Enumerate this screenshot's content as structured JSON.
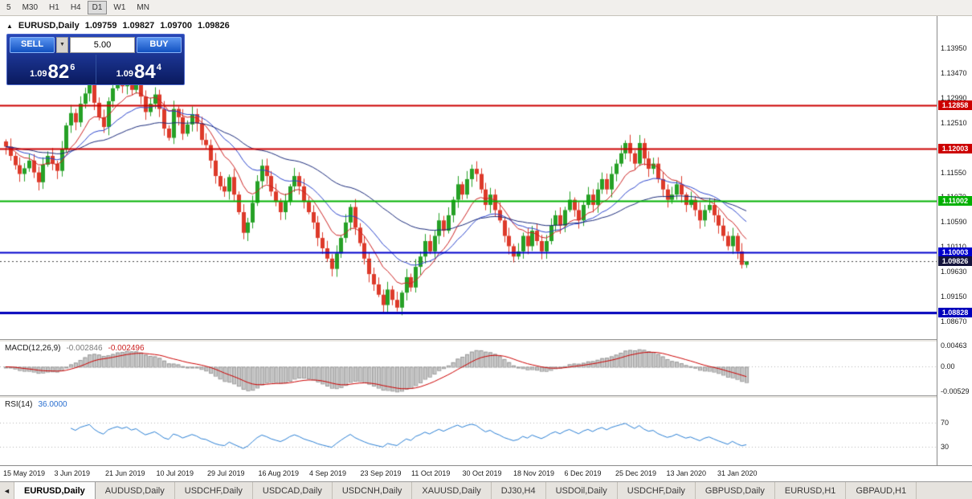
{
  "timeframe_toolbar": {
    "items": [
      "5",
      "M30",
      "H1",
      "H4",
      "D1",
      "W1",
      "MN"
    ],
    "active": "D1"
  },
  "chart_header": {
    "marker": "▲",
    "symbol": "EURUSD,Daily",
    "open": "1.09759",
    "high": "1.09827",
    "low": "1.09700",
    "close": "1.09826"
  },
  "trade_panel": {
    "sell_label": "SELL",
    "buy_label": "BUY",
    "volume": "5.00",
    "spinner_icon": "▼",
    "sell_price": {
      "prefix": "1.09",
      "big": "82",
      "sup": "6"
    },
    "buy_price": {
      "prefix": "1.09",
      "big": "84",
      "sup": "4"
    }
  },
  "price_axis": {
    "ticks": [
      "1.13950",
      "1.13470",
      "1.12990",
      "1.12510",
      "1.12030",
      "1.11550",
      "1.11070",
      "1.10590",
      "1.10110",
      "1.09630",
      "1.09150",
      "1.08670"
    ]
  },
  "levels": [
    {
      "label": "1.12858",
      "value": 1.12858,
      "color": "#cc0000",
      "width": 2
    },
    {
      "label": "1.12003",
      "value": 1.12003,
      "color": "#cc0000",
      "width": 2
    },
    {
      "label": "1.11002",
      "value": 1.11002,
      "color": "#00b000",
      "width": 2
    },
    {
      "label": "1.10003",
      "value": 1.10003,
      "color": "#0000cc",
      "width": 2
    },
    {
      "label": "1.08828",
      "value": 1.08828,
      "color": "#0000bb",
      "width": 3
    }
  ],
  "current_price": {
    "label": "1.09826",
    "value": 1.09826,
    "color": "#14143c"
  },
  "indicators": {
    "macd": {
      "label": "MACD(12,26,9)",
      "value_main": "-0.002846",
      "value_signal": "-0.002496",
      "axis_ticks": [
        "0.00463",
        "0.00",
        "-0.00529"
      ],
      "scale_max": 0.0055,
      "scale_min": -0.0062,
      "histogram_color": "#c6c6c6",
      "histogram_border": "#9a9a9a",
      "signal_color": "#cc0000"
    },
    "rsi": {
      "label": "RSI(14)",
      "value": "36.0000",
      "levels": [
        "70",
        "30"
      ],
      "scale_max": 110,
      "scale_min": 0,
      "line_color": "#2a7fd4"
    }
  },
  "time_axis": {
    "labels": [
      "15 May 2019",
      "3 Jun 2019",
      "21 Jun 2019",
      "10 Jul 2019",
      "29 Jul 2019",
      "16 Aug 2019",
      "4 Sep 2019",
      "23 Sep 2019",
      "11 Oct 2019",
      "30 Oct 2019",
      "18 Nov 2019",
      "6 Dec 2019",
      "25 Dec 2019",
      "13 Jan 2020",
      "31 Jan 2020"
    ]
  },
  "tabs": {
    "scroll_left_icon": "◄",
    "items": [
      {
        "label": "EURUSD,Daily",
        "active": true
      },
      {
        "label": "AUDUSD,Daily",
        "active": false
      },
      {
        "label": "USDCHF,Daily",
        "active": false
      },
      {
        "label": "USDCAD,Daily",
        "active": false
      },
      {
        "label": "USDCNH,Daily",
        "active": false
      },
      {
        "label": "XAUUSD,Daily",
        "active": false
      },
      {
        "label": "DJ30,H4",
        "active": false
      },
      {
        "label": "USDOil,Daily",
        "active": false
      },
      {
        "label": "USDCHF,Daily",
        "active": false
      },
      {
        "label": "GBPUSD,Daily",
        "active": false
      },
      {
        "label": "EURUSD,H1",
        "active": false
      },
      {
        "label": "GBPAUD,H1",
        "active": false
      }
    ]
  },
  "chart_data": {
    "type": "candlestick",
    "symbol": "EURUSD",
    "timeframe": "Daily",
    "ylim": [
      1.0832,
      1.1458
    ],
    "first_open": 1.1215,
    "up_color": "#26a126",
    "down_color": "#dd3a2a",
    "closes": [
      1.1205,
      1.1187,
      1.1169,
      1.1152,
      1.1163,
      1.1178,
      1.1155,
      1.1136,
      1.117,
      1.1187,
      1.1172,
      1.1158,
      1.12,
      1.1246,
      1.127,
      1.1252,
      1.1288,
      1.1308,
      1.1328,
      1.129,
      1.1262,
      1.1243,
      1.1293,
      1.1318,
      1.1338,
      1.1322,
      1.1342,
      1.1315,
      1.1332,
      1.1302,
      1.1272,
      1.1288,
      1.1306,
      1.1278,
      1.124,
      1.1222,
      1.1278,
      1.1262,
      1.123,
      1.1248,
      1.1268,
      1.125,
      1.1218,
      1.1208,
      1.1178,
      1.1148,
      1.1128,
      1.1118,
      1.1146,
      1.1112,
      1.1078,
      1.1038,
      1.1058,
      1.1096,
      1.1138,
      1.1168,
      1.1148,
      1.1118,
      1.1098,
      1.1078,
      1.1098,
      1.1128,
      1.1148,
      1.1128,
      1.1098,
      1.1078,
      1.1058,
      1.1028,
      1.1008,
      1.0988,
      1.0968,
      1.0998,
      1.1028,
      1.1058,
      1.1088,
      1.1048,
      1.1018,
      1.0988,
      1.0958,
      1.0938,
      1.0918,
      1.0898,
      1.0928,
      1.0908,
      1.0893,
      1.0922,
      1.0952,
      1.0932,
      1.0972,
      1.0992,
      1.1022,
      1.1002,
      1.1032,
      1.1062,
      1.1042,
      1.1072,
      1.1102,
      1.1132,
      1.1112,
      1.1142,
      1.1162,
      1.1152,
      1.1122,
      1.1092,
      1.1112,
      1.1082,
      1.1062,
      1.1032,
      1.1012,
      1.0992,
      1.1002,
      1.1032,
      1.1012,
      1.1042,
      1.1022,
      1.1002,
      1.1022,
      1.1052,
      1.1072,
      1.1052,
      1.1082,
      1.1102,
      1.1082,
      1.1062,
      1.1092,
      1.1112,
      1.1092,
      1.1122,
      1.1142,
      1.1122,
      1.1152,
      1.1172,
      1.1192,
      1.1212,
      1.1192,
      1.1172,
      1.1212,
      1.1182,
      1.1162,
      1.1172,
      1.1142,
      1.1122,
      1.1102,
      1.1112,
      1.1132,
      1.1112,
      1.1092,
      1.1102,
      1.1082,
      1.1062,
      1.1082,
      1.1092,
      1.1072,
      1.1052,
      1.1032,
      1.1012,
      1.1032,
      1.1002,
      1.0976,
      1.09826
    ],
    "last_candle": [
      1.09759,
      1.09827,
      1.097,
      1.09826
    ],
    "spike_high": {
      "index": 26,
      "price": 1.1352
    },
    "spike_low": {
      "index": 84,
      "price": 1.0886
    },
    "ma": [
      {
        "period": 10,
        "color": "#cc2222"
      },
      {
        "period": 21,
        "color": "#2a44cc"
      },
      {
        "period": 50,
        "color": "#1a2a7a"
      }
    ]
  }
}
